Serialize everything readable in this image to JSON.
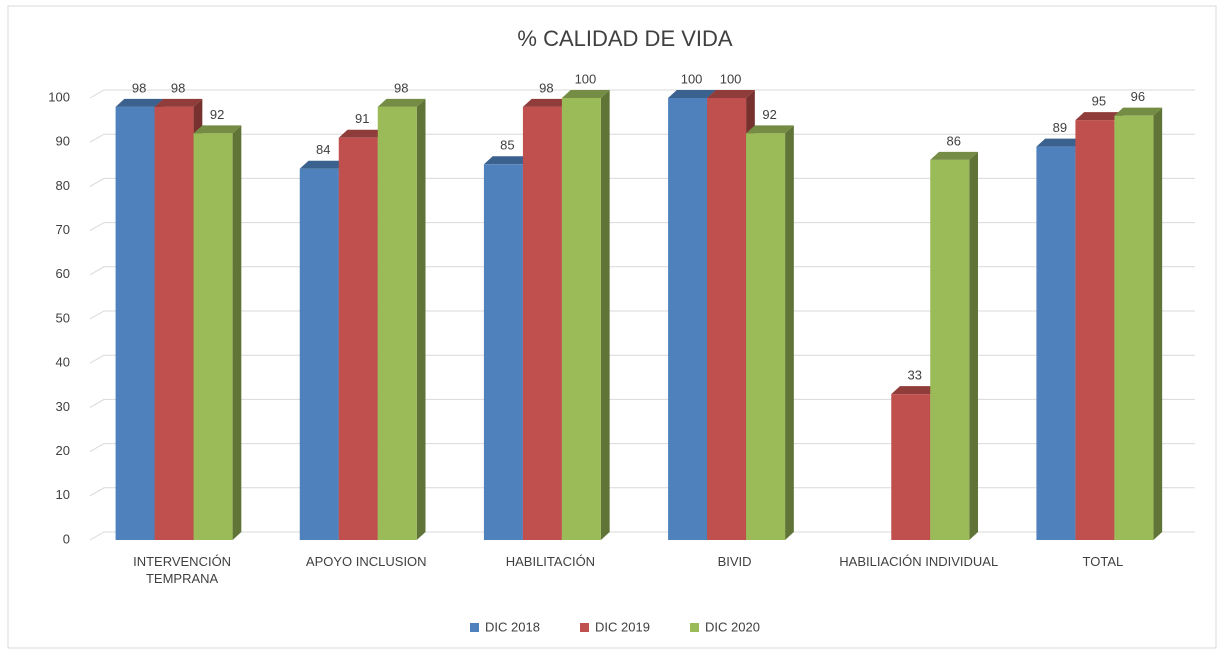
{
  "chart_data": {
    "type": "bar3d",
    "title": "% CALIDAD DE VIDA",
    "categories": [
      "INTERVENCIÓN TEMPRANA",
      "APOYO INCLUSION",
      "HABILITACIÓN",
      "BIVID",
      "HABILIACIÓN INDIVIDUAL",
      "TOTAL"
    ],
    "series": [
      {
        "name": "DIC 2018",
        "color": "#4f81bd",
        "values": [
          98,
          84,
          85,
          100,
          null,
          89
        ]
      },
      {
        "name": "DIC 2019",
        "color": "#c0504d",
        "values": [
          98,
          91,
          98,
          100,
          33,
          95
        ]
      },
      {
        "name": "DIC 2020",
        "color": "#9bbb59",
        "values": [
          92,
          98,
          100,
          92,
          86,
          96
        ]
      }
    ],
    "ylim": [
      0,
      100
    ],
    "yticks": [
      0,
      10,
      20,
      30,
      40,
      50,
      60,
      70,
      80,
      90,
      100
    ],
    "grid": true,
    "legend": "bottom"
  }
}
